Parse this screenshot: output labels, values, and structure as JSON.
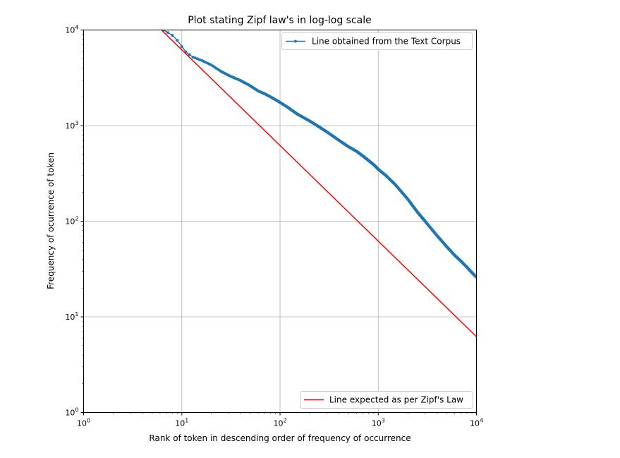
{
  "chart_data": {
    "type": "line",
    "title": "Plot stating Zipf law's in log-log scale",
    "xlabel": "Rank of token in descending order of frequency of occurrence",
    "ylabel": "Frequency of ocurrence of token",
    "xscale": "log",
    "yscale": "log",
    "xlim": [
      1,
      10000
    ],
    "ylim": [
      1,
      10000
    ],
    "grid": true,
    "x_ticks": [
      {
        "base": "10",
        "exp": "0",
        "value": 1
      },
      {
        "base": "10",
        "exp": "1",
        "value": 10
      },
      {
        "base": "10",
        "exp": "2",
        "value": 100
      },
      {
        "base": "10",
        "exp": "3",
        "value": 1000
      },
      {
        "base": "10",
        "exp": "4",
        "value": 10000
      }
    ],
    "y_ticks": [
      {
        "base": "10",
        "exp": "0",
        "value": 1
      },
      {
        "base": "10",
        "exp": "1",
        "value": 10
      },
      {
        "base": "10",
        "exp": "2",
        "value": 100
      },
      {
        "base": "10",
        "exp": "3",
        "value": 1000
      },
      {
        "base": "10",
        "exp": "4",
        "value": 10000
      }
    ],
    "series": [
      {
        "name": "Line obtained from the Text Corpus",
        "color": "#1f77b4",
        "marker": "dot",
        "legend_position": "upper right",
        "x": [
          6.5,
          8,
          9,
          10,
          11,
          13,
          16,
          20,
          25,
          30,
          40,
          50,
          60,
          70,
          80,
          100,
          120,
          150,
          200,
          250,
          300,
          400,
          500,
          600,
          700,
          800,
          900,
          1000,
          1200,
          1500,
          2000,
          2500,
          3000,
          4000,
          5000,
          6000,
          7000,
          8000,
          9000,
          10000
        ],
        "y": [
          10000,
          8800,
          7800,
          6700,
          5900,
          5200,
          4800,
          4300,
          3700,
          3350,
          2950,
          2600,
          2300,
          2150,
          2000,
          1750,
          1550,
          1320,
          1120,
          970,
          860,
          700,
          600,
          540,
          480,
          430,
          390,
          350,
          300,
          240,
          170,
          125,
          100,
          70,
          54,
          44,
          38,
          33,
          29,
          26
        ]
      },
      {
        "name": "Line expected as per Zipf's Law",
        "color": "#ff0000",
        "legend_position": "lower right",
        "x": [
          6.2,
          10000
        ],
        "y": [
          10000,
          6.2
        ]
      }
    ]
  }
}
